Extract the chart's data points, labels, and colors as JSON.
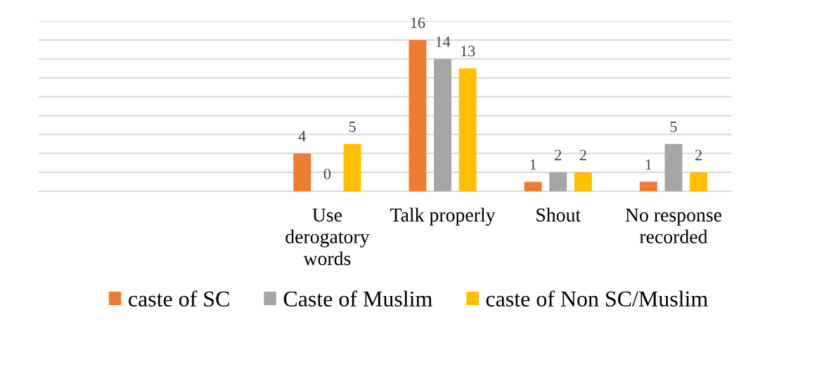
{
  "chart_data": {
    "type": "bar",
    "categories": [
      null,
      null,
      "Use\nderogatory\nwords",
      "Talk properly",
      "Shout",
      "No response\nrecorded"
    ],
    "series": [
      {
        "name": "caste of SC",
        "color": "#ed7d31",
        "values": [
          null,
          null,
          4,
          16,
          1,
          1
        ]
      },
      {
        "name": "Caste of Muslim",
        "color": "#a5a5a5",
        "values": [
          null,
          null,
          0,
          14,
          2,
          5
        ]
      },
      {
        "name": "caste of Non SC/Muslim",
        "color": "#ffc000",
        "values": [
          null,
          null,
          5,
          13,
          2,
          2
        ]
      }
    ],
    "ylim": [
      0,
      18
    ],
    "yticks": [
      {
        "value": 0,
        "label": null
      },
      {
        "value": 2,
        "label": null
      },
      {
        "value": 4,
        "label": null
      },
      {
        "value": 6,
        "label": null
      },
      {
        "value": 8,
        "label": null
      },
      {
        "value": 10,
        "label": null
      },
      {
        "value": 12,
        "label": null
      },
      {
        "value": 14,
        "label": null
      },
      {
        "value": 16,
        "label": null
      },
      {
        "value": 18,
        "label": null
      }
    ],
    "grid": "y",
    "legend": "bottom",
    "tick_labels": "x",
    "data_labels": true
  }
}
